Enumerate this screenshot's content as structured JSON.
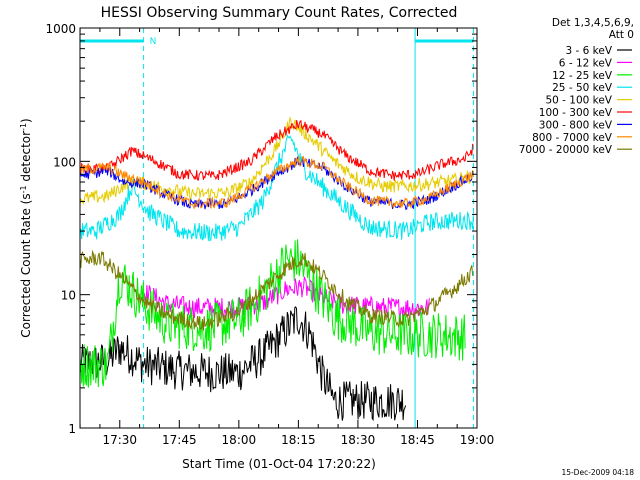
{
  "chart_data": {
    "type": "line",
    "title": "HESSI Observing Summary Count Rates, Corrected",
    "xlabel": "Start Time (01-Oct-04 17:20:22)",
    "ylabel_main": "Corrected Count Rate (s",
    "ylabel_sup1": "-1",
    "ylabel_mid": " detector",
    "ylabel_sup2": "-1",
    "ylabel_end": ")",
    "yscale": "log",
    "ylim": [
      1,
      1000
    ],
    "xlim_minutes": [
      17.333,
      19.0
    ],
    "x_ticks": [
      {
        "label": "17:30",
        "hour": 17.5
      },
      {
        "label": "17:45",
        "hour": 17.75
      },
      {
        "label": "18:00",
        "hour": 18.0
      },
      {
        "label": "18:15",
        "hour": 18.25
      },
      {
        "label": "18:30",
        "hour": 18.5
      },
      {
        "label": "18:45",
        "hour": 18.75
      },
      {
        "label": "19:00",
        "hour": 19.0
      }
    ],
    "y_ticks": [
      {
        "label": "1",
        "value": 1
      },
      {
        "label": "10",
        "value": 10
      },
      {
        "label": "100",
        "value": 100
      },
      {
        "label": "1000",
        "value": 1000
      }
    ],
    "legend_header": [
      "Det 1,3,4,5,6,9,",
      "Att 0"
    ],
    "legend_placement": "right",
    "night_marker": "N",
    "night_intervals": [
      [
        17.333,
        17.6
      ],
      [
        18.74,
        18.985
      ]
    ],
    "series": [
      {
        "name": "3 - 6 keV",
        "color": "#000000",
        "points": [
          [
            17.333,
            3.0
          ],
          [
            17.45,
            3.2
          ],
          [
            17.5,
            4.0
          ],
          [
            17.6,
            3.0
          ],
          [
            17.75,
            2.7
          ],
          [
            17.9,
            2.6
          ],
          [
            18.0,
            2.6
          ],
          [
            18.1,
            3.5
          ],
          [
            18.2,
            5.5
          ],
          [
            18.25,
            6.8
          ],
          [
            18.3,
            5.0
          ],
          [
            18.35,
            2.5
          ],
          [
            18.4,
            1.6
          ],
          [
            18.5,
            1.6
          ],
          [
            18.6,
            1.6
          ],
          [
            18.7,
            1.6
          ]
        ]
      },
      {
        "name": "6 - 12 keV",
        "color": "#ff00ff",
        "points": [
          [
            17.6,
            10.5
          ],
          [
            17.7,
            8.5
          ],
          [
            17.8,
            8.0
          ],
          [
            18.0,
            8.0
          ],
          [
            18.1,
            8.7
          ],
          [
            18.2,
            11.0
          ],
          [
            18.27,
            11.5
          ],
          [
            18.35,
            9.5
          ],
          [
            18.45,
            8.3
          ],
          [
            18.6,
            8.0
          ],
          [
            18.75,
            8.0
          ],
          [
            18.8,
            8.0
          ]
        ]
      },
      {
        "name": "12 - 25 keV",
        "color": "#00ee00",
        "points": [
          [
            17.333,
            3.0
          ],
          [
            17.45,
            3.0
          ],
          [
            17.5,
            14.0
          ],
          [
            17.6,
            8.5
          ],
          [
            17.7,
            6.0
          ],
          [
            17.85,
            5.5
          ],
          [
            18.0,
            6.5
          ],
          [
            18.1,
            10.0
          ],
          [
            18.2,
            18.0
          ],
          [
            18.25,
            18.0
          ],
          [
            18.3,
            13.0
          ],
          [
            18.4,
            7.0
          ],
          [
            18.55,
            5.2
          ],
          [
            18.7,
            5.0
          ],
          [
            18.85,
            5.0
          ],
          [
            18.95,
            4.8
          ]
        ]
      },
      {
        "name": "25 - 50 keV",
        "color": "#00e5ee",
        "points": [
          [
            17.333,
            30
          ],
          [
            17.4,
            30
          ],
          [
            17.5,
            40
          ],
          [
            17.55,
            65
          ],
          [
            17.62,
            42
          ],
          [
            17.75,
            30
          ],
          [
            17.9,
            29
          ],
          [
            18.0,
            32
          ],
          [
            18.1,
            50
          ],
          [
            18.18,
            110
          ],
          [
            18.22,
            150
          ],
          [
            18.27,
            90
          ],
          [
            18.35,
            65
          ],
          [
            18.45,
            45
          ],
          [
            18.55,
            32
          ],
          [
            18.7,
            30
          ],
          [
            18.8,
            35
          ],
          [
            18.9,
            36
          ],
          [
            18.985,
            36
          ]
        ]
      },
      {
        "name": "50 - 100 keV",
        "color": "#e6cc00",
        "points": [
          [
            17.333,
            52
          ],
          [
            17.45,
            55
          ],
          [
            17.55,
            72
          ],
          [
            17.65,
            65
          ],
          [
            17.8,
            57
          ],
          [
            17.95,
            58
          ],
          [
            18.05,
            70
          ],
          [
            18.15,
            120
          ],
          [
            18.22,
            200
          ],
          [
            18.3,
            150
          ],
          [
            18.4,
            100
          ],
          [
            18.5,
            75
          ],
          [
            18.6,
            65
          ],
          [
            18.7,
            65
          ],
          [
            18.8,
            68
          ],
          [
            18.9,
            72
          ],
          [
            18.985,
            78
          ]
        ]
      },
      {
        "name": "100 - 300 keV",
        "color": "#ff0000",
        "points": [
          [
            17.333,
            88
          ],
          [
            17.45,
            88
          ],
          [
            17.55,
            120
          ],
          [
            17.65,
            100
          ],
          [
            17.75,
            80
          ],
          [
            17.9,
            77
          ],
          [
            18.05,
            100
          ],
          [
            18.15,
            150
          ],
          [
            18.25,
            190
          ],
          [
            18.35,
            160
          ],
          [
            18.45,
            110
          ],
          [
            18.55,
            85
          ],
          [
            18.65,
            78
          ],
          [
            18.75,
            80
          ],
          [
            18.85,
            95
          ],
          [
            18.95,
            105
          ],
          [
            18.985,
            125
          ]
        ]
      },
      {
        "name": "300 - 800 keV",
        "color": "#0000ff",
        "points": [
          [
            17.333,
            78
          ],
          [
            17.45,
            85
          ],
          [
            17.52,
            70
          ],
          [
            17.6,
            68
          ],
          [
            17.7,
            55
          ],
          [
            17.8,
            47
          ],
          [
            17.95,
            48
          ],
          [
            18.05,
            60
          ],
          [
            18.15,
            80
          ],
          [
            18.25,
            100
          ],
          [
            18.35,
            90
          ],
          [
            18.45,
            65
          ],
          [
            18.55,
            50
          ],
          [
            18.7,
            47
          ],
          [
            18.8,
            52
          ],
          [
            18.9,
            65
          ],
          [
            18.985,
            78
          ]
        ]
      },
      {
        "name": "800 - 7000 keV",
        "color": "#ff8800",
        "points": [
          [
            17.333,
            86
          ],
          [
            17.45,
            90
          ],
          [
            17.52,
            78
          ],
          [
            17.6,
            70
          ],
          [
            17.7,
            56
          ],
          [
            17.8,
            48
          ],
          [
            17.95,
            49
          ],
          [
            18.05,
            62
          ],
          [
            18.15,
            82
          ],
          [
            18.25,
            102
          ],
          [
            18.35,
            92
          ],
          [
            18.45,
            66
          ],
          [
            18.55,
            51
          ],
          [
            18.7,
            48
          ],
          [
            18.8,
            53
          ],
          [
            18.9,
            66
          ],
          [
            18.985,
            80
          ]
        ]
      },
      {
        "name": "7000 - 20000 keV",
        "color": "#7a7a00",
        "points": [
          [
            17.333,
            18
          ],
          [
            17.42,
            19
          ],
          [
            17.5,
            14
          ],
          [
            17.6,
            9.0
          ],
          [
            17.7,
            7.0
          ],
          [
            17.85,
            6.0
          ],
          [
            18.0,
            7.5
          ],
          [
            18.1,
            11.0
          ],
          [
            18.2,
            16.0
          ],
          [
            18.27,
            19.0
          ],
          [
            18.35,
            14.0
          ],
          [
            18.45,
            9.0
          ],
          [
            18.55,
            7.0
          ],
          [
            18.7,
            6.5
          ],
          [
            18.8,
            8.0
          ],
          [
            18.9,
            11.0
          ],
          [
            18.985,
            15.0
          ]
        ]
      }
    ]
  },
  "footer_timestamp": "15-Dec-2009 04:18"
}
